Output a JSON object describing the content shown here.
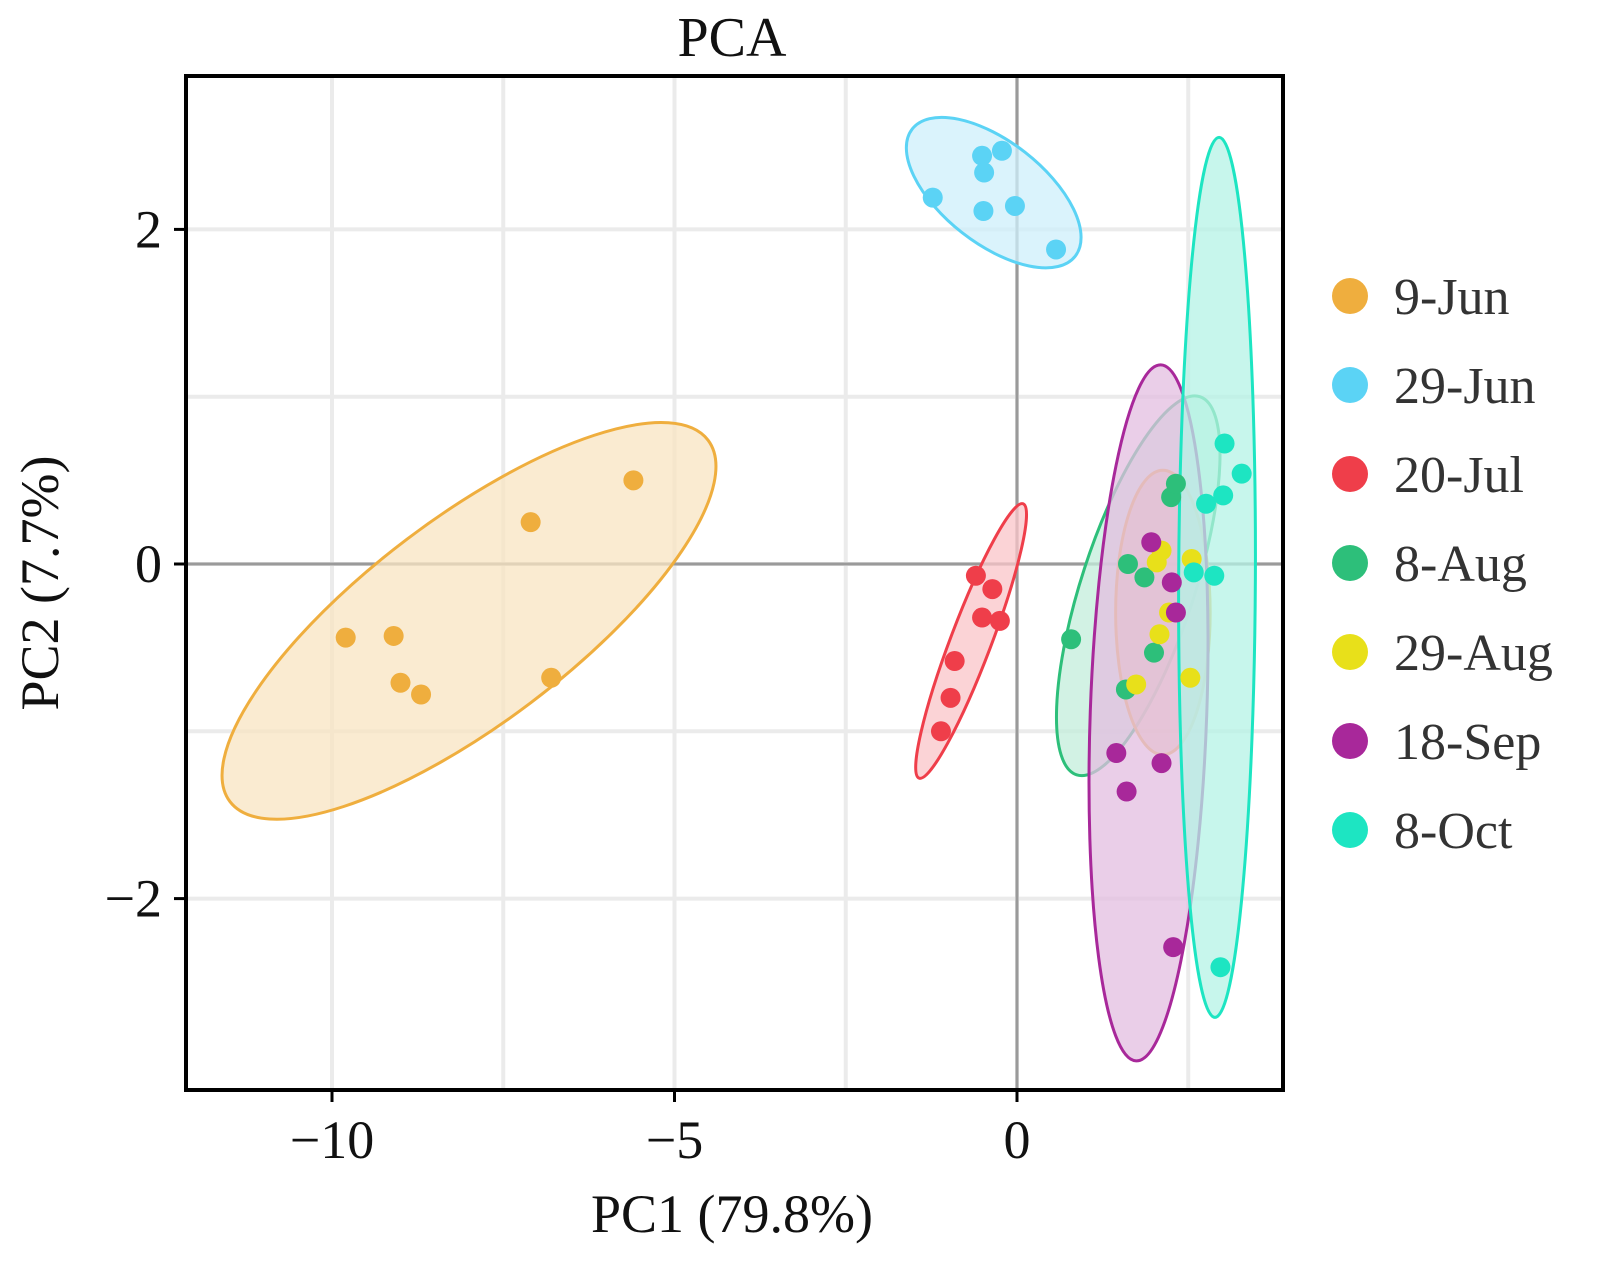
{
  "chart_data": {
    "type": "scatter",
    "title": "PCA",
    "xlabel": "PC1 (79.8%)",
    "ylabel": "PC2 (7.7%)",
    "xlim": [
      -12.2,
      3.9
    ],
    "ylim": [
      -3.1,
      2.9
    ],
    "xticks": [
      -10,
      -5,
      0
    ],
    "xtick_labels": [
      "−10",
      "−5",
      "0"
    ],
    "yticks": [
      2,
      0,
      -2
    ],
    "ytick_labels": [
      "2",
      "0",
      "−2"
    ],
    "x_minor_grid": [
      -12.5,
      -7.5,
      -2.5,
      2.5
    ],
    "y_minor_grid": [
      1,
      -1
    ],
    "grid": true,
    "zero_lines": true,
    "legend_position": "right",
    "series": [
      {
        "name": "9-Jun",
        "color": "#EFAE3E",
        "fill": "#F8E4C2",
        "stroke": "#EFAE3E",
        "points": [
          [
            -5.6,
            0.5
          ],
          [
            -7.1,
            0.25
          ],
          [
            -9.8,
            -0.44
          ],
          [
            -9.1,
            -0.43
          ],
          [
            -9.0,
            -0.71
          ],
          [
            -8.7,
            -0.78
          ],
          [
            -6.8,
            -0.68
          ]
        ],
        "ellipse": {
          "center": [
            -8.0,
            -0.34
          ],
          "major_tip": [
            -4.51,
            0.74
          ],
          "minor_tip": [
            -7.1,
            -0.83
          ]
        }
      },
      {
        "name": "29-Jun",
        "color": "#5BD3F5",
        "fill": "#CDEFFB",
        "stroke": "#5BD3F5",
        "points": [
          [
            -1.23,
            2.19
          ],
          [
            -0.51,
            2.44
          ],
          [
            -0.22,
            2.47
          ],
          [
            -0.48,
            2.34
          ],
          [
            -0.49,
            2.11
          ],
          [
            -0.03,
            2.14
          ],
          [
            0.57,
            1.88
          ]
        ],
        "ellipse": {
          "center": [
            -0.34,
            2.22
          ],
          "major_tip": [
            0.85,
            1.84
          ],
          "minor_tip": [
            0.12,
            2.46
          ]
        }
      },
      {
        "name": "20-Jul",
        "color": "#EF3E4A",
        "fill": "#F9C4C8",
        "stroke": "#EF3E4A",
        "points": [
          [
            -0.6,
            -0.07
          ],
          [
            -0.36,
            -0.15
          ],
          [
            -0.51,
            -0.32
          ],
          [
            -0.25,
            -0.34
          ],
          [
            -0.91,
            -0.58
          ],
          [
            -0.97,
            -0.8
          ],
          [
            -1.11,
            -1.0
          ]
        ],
        "ellipse": {
          "center": [
            -0.67,
            -0.46
          ],
          "major_tip": [
            0.09,
            0.36
          ],
          "minor_tip": [
            -0.39,
            -0.5
          ]
        }
      },
      {
        "name": "8-Aug",
        "color": "#2DBF7A",
        "fill": "#C3EEDB",
        "stroke": "#2DBF7A",
        "points": [
          [
            0.79,
            -0.45
          ],
          [
            1.62,
            0.0
          ],
          [
            1.86,
            -0.08
          ],
          [
            2.25,
            0.4
          ],
          [
            2.32,
            0.48
          ],
          [
            2.0,
            -0.53
          ],
          [
            1.59,
            -0.75
          ]
        ],
        "ellipse": {
          "center": [
            1.77,
            -0.13
          ],
          "major_tip": [
            2.67,
            1.0
          ],
          "minor_tip": [
            2.55,
            -0.24
          ]
        }
      },
      {
        "name": "29-Aug",
        "color": "#E8E01A",
        "fill": "#E8C9A8",
        "stroke": "#E8B44A",
        "points": [
          [
            2.04,
            0.01
          ],
          [
            2.11,
            0.08
          ],
          [
            2.55,
            0.03
          ],
          [
            2.08,
            -0.42
          ],
          [
            2.22,
            -0.29
          ],
          [
            1.74,
            -0.72
          ],
          [
            2.53,
            -0.68
          ]
        ],
        "ellipse": {
          "center": [
            2.13,
            -0.29
          ],
          "major_tip": [
            2.13,
            0.56
          ],
          "minor_tip": [
            2.82,
            -0.29
          ]
        }
      },
      {
        "name": "18-Sep",
        "color": "#A8289A",
        "fill": "#E3BDE0",
        "stroke": "#A8289A",
        "points": [
          [
            1.96,
            0.13
          ],
          [
            2.26,
            -0.11
          ],
          [
            2.32,
            -0.29
          ],
          [
            1.45,
            -1.13
          ],
          [
            1.6,
            -1.36
          ],
          [
            2.11,
            -1.19
          ],
          [
            2.28,
            -2.29
          ]
        ],
        "ellipse": {
          "center": [
            1.92,
            -0.89
          ],
          "major_tip": [
            2.1,
            1.19
          ],
          "minor_tip": [
            2.77,
            -0.9
          ]
        }
      },
      {
        "name": "8-Oct",
        "color": "#1DE5C2",
        "fill": "#B4F3E6",
        "stroke": "#1DE5C2",
        "points": [
          [
            3.03,
            0.72
          ],
          [
            3.28,
            0.54
          ],
          [
            3.01,
            0.41
          ],
          [
            2.76,
            0.36
          ],
          [
            2.58,
            -0.05
          ],
          [
            2.88,
            -0.07
          ],
          [
            2.97,
            -2.41
          ]
        ],
        "ellipse": {
          "center": [
            2.92,
            -0.08
          ],
          "major_tip": [
            2.95,
            2.55
          ],
          "minor_tip": [
            3.48,
            -0.08
          ]
        }
      }
    ]
  }
}
